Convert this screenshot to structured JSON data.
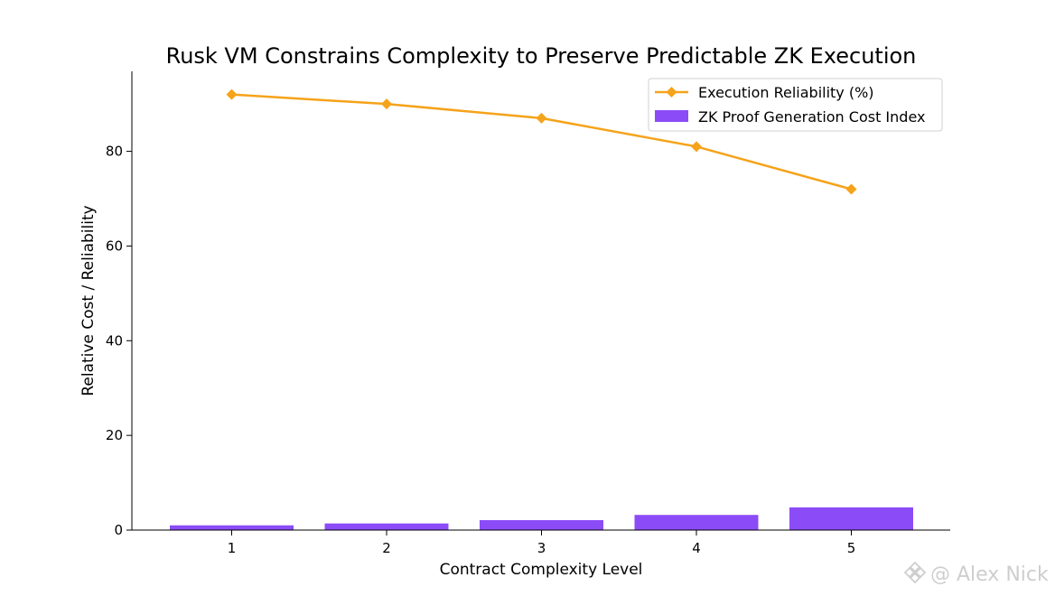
{
  "chart_data": {
    "type": "bar+line",
    "title": "Rusk VM Constrains Complexity to Preserve Predictable ZK Execution",
    "xlabel": "Contract Complexity Level",
    "ylabel": "Relative Cost / Reliability",
    "categories": [
      "1",
      "2",
      "3",
      "4",
      "5"
    ],
    "yticks": [
      "0",
      "20",
      "40",
      "60",
      "80"
    ],
    "ylim": [
      0,
      95
    ],
    "grid": false,
    "legend_position": "top-right",
    "series": [
      {
        "name": "Execution Reliability (%)",
        "kind": "line",
        "marker": "diamond",
        "color": "#f5a31a",
        "values": [
          92,
          90,
          87,
          81,
          72
        ]
      },
      {
        "name": "ZK Proof Generation Cost Index",
        "kind": "bar",
        "color": "#8b4cf7",
        "values": [
          1.0,
          1.4,
          2.1,
          3.2,
          4.8
        ]
      }
    ]
  },
  "watermark": {
    "text": "@ Alex Nick",
    "icon": "binance-logo-icon"
  }
}
